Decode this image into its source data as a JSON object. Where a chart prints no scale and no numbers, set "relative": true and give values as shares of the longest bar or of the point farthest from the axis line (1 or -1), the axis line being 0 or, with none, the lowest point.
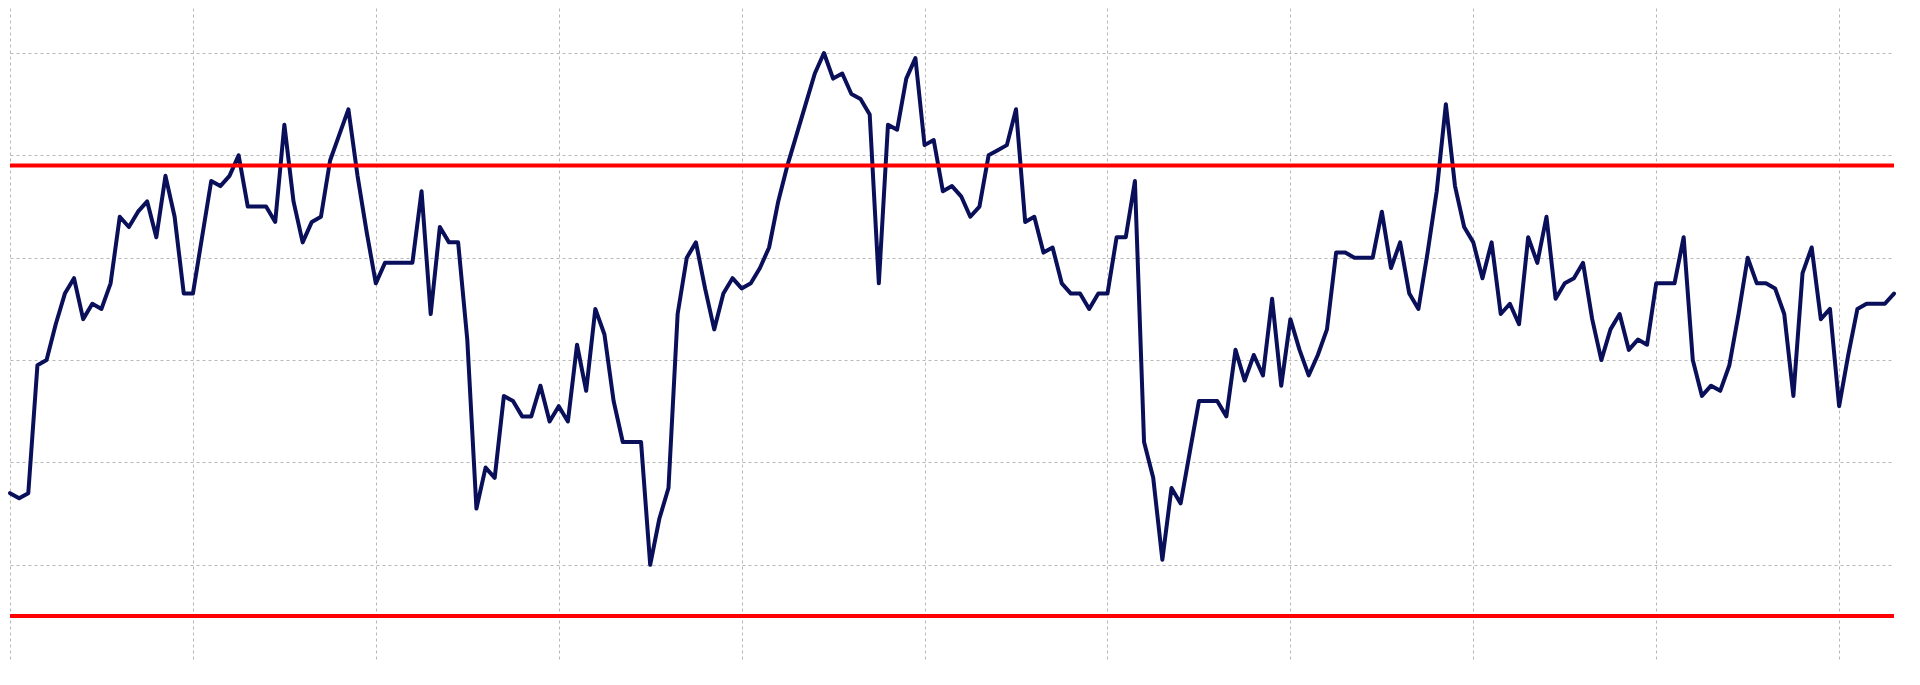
{
  "chart_data": {
    "type": "line",
    "relative": true,
    "grid": true,
    "categories": [
      null,
      null,
      null,
      null,
      null,
      null,
      null,
      null,
      null,
      null,
      null,
      null,
      null,
      null,
      null,
      null,
      null,
      null,
      null,
      null,
      null,
      null,
      null,
      null,
      null,
      null,
      null,
      null,
      null,
      null,
      null,
      null,
      null,
      null,
      null,
      null,
      null,
      null,
      null,
      null,
      null,
      null,
      null,
      null,
      null,
      null,
      null,
      null,
      null,
      null,
      null,
      null,
      null,
      null,
      null,
      null,
      null,
      null,
      null,
      null,
      null,
      null,
      null,
      null,
      null,
      null,
      null,
      null,
      null,
      null,
      null,
      null,
      null,
      null,
      null,
      null,
      null,
      null,
      null,
      null,
      null,
      null,
      null,
      null,
      null,
      null,
      null,
      null,
      null,
      null,
      null,
      null,
      null,
      null,
      null,
      null,
      null,
      null,
      null,
      null,
      null,
      null,
      null,
      null,
      null,
      null,
      null,
      null,
      null,
      null,
      null,
      null,
      null,
      null,
      null,
      null,
      null,
      null,
      null,
      null,
      null,
      null,
      null,
      null,
      null,
      null,
      null,
      null,
      null,
      null,
      null,
      null,
      null,
      null,
      null,
      null,
      null,
      null,
      null,
      null,
      null,
      null,
      null,
      null,
      null,
      null,
      null,
      null,
      null,
      null,
      null,
      null,
      null,
      null,
      null,
      null,
      null,
      null,
      null,
      null,
      null,
      null,
      null,
      null,
      null,
      null,
      null,
      null,
      null,
      null,
      null,
      null,
      null,
      null,
      null,
      null,
      null,
      null,
      null,
      null,
      null,
      null,
      null,
      null,
      null,
      null,
      null,
      null,
      null,
      null,
      null,
      null,
      null,
      null,
      null,
      null,
      null,
      null,
      null,
      null,
      null,
      null,
      null,
      null,
      null,
      null,
      null
    ],
    "series": [
      {
        "color": "#0a0f5a",
        "values": [
          0.14,
          0.13,
          0.14,
          0.39,
          0.4,
          0.47,
          0.53,
          0.56,
          0.48,
          0.51,
          0.5,
          0.55,
          0.68,
          0.66,
          0.69,
          0.71,
          0.64,
          0.76,
          0.68,
          0.53,
          0.53,
          0.64,
          0.75,
          0.74,
          0.76,
          0.8,
          0.7,
          0.7,
          0.7,
          0.67,
          0.86,
          0.71,
          0.63,
          0.67,
          0.68,
          0.79,
          0.84,
          0.89,
          0.76,
          0.65,
          0.55,
          0.59,
          0.59,
          0.59,
          0.59,
          0.73,
          0.49,
          0.66,
          0.63,
          0.63,
          0.44,
          0.11,
          0.19,
          0.17,
          0.33,
          0.32,
          0.29,
          0.29,
          0.35,
          0.28,
          0.31,
          0.28,
          0.43,
          0.34,
          0.5,
          0.45,
          0.32,
          0.24,
          0.24,
          0.24,
          0,
          0.09,
          0.15,
          0.49,
          0.6,
          0.63,
          0.54,
          0.46,
          0.53,
          0.56,
          0.54,
          0.55,
          0.58,
          0.62,
          0.71,
          0.78,
          0.84,
          0.9,
          0.96,
          1,
          0.95,
          0.96,
          0.92,
          0.91,
          0.88,
          0.55,
          0.86,
          0.85,
          0.95,
          0.99,
          0.82,
          0.83,
          0.73,
          0.74,
          0.72,
          0.68,
          0.7,
          0.8,
          0.81,
          0.82,
          0.89,
          0.67,
          0.68,
          0.61,
          0.62,
          0.55,
          0.53,
          0.53,
          0.5,
          0.53,
          0.53,
          0.64,
          0.64,
          0.75,
          0.24,
          0.17,
          0.01,
          0.15,
          0.12,
          0.22,
          0.32,
          0.32,
          0.32,
          0.29,
          0.42,
          0.36,
          0.41,
          0.37,
          0.52,
          0.35,
          0.48,
          0.42,
          0.37,
          0.41,
          0.46,
          0.61,
          0.61,
          0.6,
          0.6,
          0.6,
          0.69,
          0.58,
          0.63,
          0.53,
          0.5,
          0.61,
          0.73,
          0.9,
          0.74,
          0.66,
          0.63,
          0.56,
          0.63,
          0.49,
          0.51,
          0.47,
          0.64,
          0.59,
          0.68,
          0.52,
          0.55,
          0.56,
          0.59,
          0.48,
          0.4,
          0.46,
          0.49,
          0.42,
          0.44,
          0.43,
          0.55,
          0.55,
          0.55,
          0.64,
          0.4,
          0.33,
          0.35,
          0.34,
          0.39,
          0.49,
          0.6,
          0.55,
          0.55,
          0.54,
          0.49,
          0.33,
          0.57,
          0.62,
          0.48,
          0.5,
          0.31,
          0.41,
          0.5,
          0.51,
          0.51,
          0.51,
          0.53
        ]
      }
    ],
    "ref_lines": [
      {
        "axis": "y",
        "value": 0.78,
        "color": "#ff0000"
      },
      {
        "axis": "y",
        "value": -0.1,
        "color": "#ff0000"
      }
    ]
  }
}
